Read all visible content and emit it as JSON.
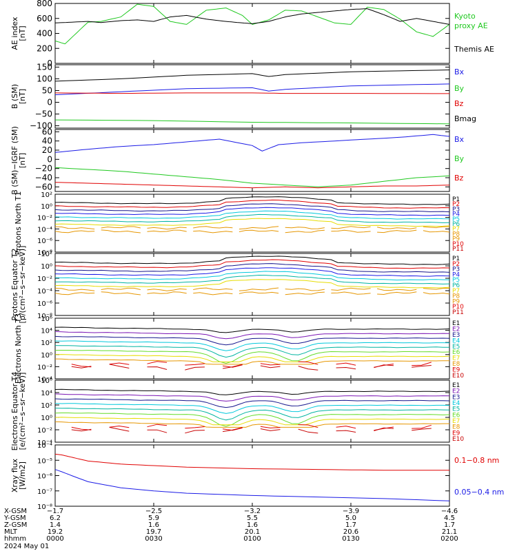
{
  "colors": {
    "black": "#000000",
    "red": "#e00000",
    "green": "#1ec81e",
    "blue": "#1a1ae6",
    "purple": "#7a14b4",
    "navy": "#14148c",
    "cyan": "#00c8dc",
    "teal": "#00b4a0",
    "lime": "#64dc28",
    "yellow": "#e6dc00",
    "orange": "#e69600",
    "darkred": "#c80000"
  },
  "chart_data": [
    {
      "type": "line",
      "ylabel": "AE index [nT]",
      "ylim": [
        0,
        800
      ],
      "yticks": [
        "0",
        "200",
        "400",
        "600",
        "800"
      ],
      "series": [
        {
          "name": "Kyoto proxy AE",
          "color": "green",
          "x": [
            0,
            3,
            10,
            14,
            20,
            25,
            30,
            35,
            40,
            46,
            52,
            57,
            60,
            65,
            70,
            75,
            80,
            85,
            90,
            95,
            100,
            105,
            110,
            115,
            120
          ],
          "values": [
            300,
            260,
            550,
            560,
            620,
            790,
            760,
            560,
            520,
            710,
            740,
            640,
            520,
            580,
            710,
            700,
            620,
            540,
            520,
            750,
            720,
            590,
            420,
            360,
            520
          ]
        },
        {
          "name": "Themis AE",
          "color": "black",
          "x": [
            0,
            5,
            10,
            14,
            20,
            25,
            30,
            35,
            40,
            46,
            52,
            57,
            60,
            65,
            70,
            75,
            80,
            85,
            90,
            95,
            100,
            105,
            110,
            115,
            120
          ],
          "values": [
            540,
            550,
            560,
            545,
            570,
            580,
            560,
            620,
            640,
            590,
            560,
            540,
            530,
            560,
            620,
            660,
            680,
            700,
            720,
            730,
            650,
            560,
            600,
            560,
            520
          ]
        }
      ]
    },
    {
      "type": "line",
      "ylabel": "B (SM) [nT]",
      "ylim": [
        -110,
        160
      ],
      "yticks": [
        "−100",
        "−50",
        "0",
        "50",
        "100",
        "150"
      ],
      "series": [
        {
          "name": "Bx",
          "color": "blue",
          "x": [
            0,
            20,
            40,
            60,
            65,
            70,
            90,
            120
          ],
          "values": [
            32,
            45,
            58,
            62,
            48,
            55,
            70,
            78
          ]
        },
        {
          "name": "By",
          "color": "green",
          "x": [
            0,
            30,
            60,
            90,
            120
          ],
          "values": [
            -75,
            -78,
            -85,
            -88,
            -92
          ]
        },
        {
          "name": "Bz",
          "color": "red",
          "x": [
            0,
            20,
            40,
            60,
            70,
            90,
            120
          ],
          "values": [
            40,
            38,
            40,
            40,
            38,
            38,
            37
          ]
        },
        {
          "name": "Bmag",
          "color": "black",
          "x": [
            0,
            20,
            40,
            60,
            65,
            70,
            90,
            120
          ],
          "values": [
            90,
            100,
            115,
            122,
            110,
            118,
            130,
            138
          ]
        }
      ]
    },
    {
      "type": "line",
      "ylabel": "B (SM)−IGRF (SM) [nT]",
      "ylim": [
        -70,
        65
      ],
      "yticks": [
        "−60",
        "−40",
        "−20",
        "0",
        "20",
        "40",
        "60"
      ],
      "series": [
        {
          "name": "Bx",
          "color": "blue",
          "x": [
            0,
            10,
            20,
            30,
            40,
            50,
            60,
            63,
            68,
            75,
            85,
            95,
            105,
            115,
            120
          ],
          "values": [
            15,
            22,
            28,
            32,
            38,
            44,
            30,
            18,
            32,
            36,
            40,
            44,
            48,
            54,
            50
          ]
        },
        {
          "name": "By",
          "color": "green",
          "x": [
            0,
            10,
            20,
            30,
            40,
            50,
            60,
            70,
            80,
            90,
            100,
            110,
            120
          ],
          "values": [
            -18,
            -22,
            -26,
            -32,
            -38,
            -44,
            -52,
            -56,
            -60,
            -56,
            -48,
            -40,
            -36
          ]
        },
        {
          "name": "Bz",
          "color": "red",
          "x": [
            0,
            10,
            20,
            30,
            40,
            50,
            60,
            70,
            80,
            90,
            100,
            110,
            120
          ],
          "values": [
            -50,
            -52,
            -54,
            -56,
            -58,
            -60,
            -62,
            -60,
            -62,
            -60,
            -58,
            -58,
            -56
          ]
        }
      ]
    },
    {
      "type": "line",
      "ylabel": "Protons North T1",
      "ylog": true,
      "yrange_exp": [
        -8,
        4
      ],
      "yticks": [
        "10²",
        "10⁰",
        "10⁻²",
        "10⁻⁴",
        "10⁻⁶",
        "10⁻⁸"
      ],
      "channels": [
        "P1",
        "P2",
        "P3",
        "P4",
        "P5",
        "P6",
        "P7",
        "P8",
        "P9",
        "P10",
        "P11"
      ],
      "channel_colors": [
        "black",
        "red",
        "navy",
        "blue",
        "cyan",
        "teal",
        "yellow",
        "orange",
        "orange",
        "red",
        "darkred"
      ]
    },
    {
      "type": "line",
      "ylabel": "Protons Equator T2 [p/(cm²−s−sr−keV)]",
      "ylog": true,
      "yrange_exp": [
        -8,
        4
      ],
      "yticks": [
        "10²",
        "10⁰",
        "10⁻²",
        "10⁻⁴",
        "10⁻⁶",
        "10⁻⁸"
      ],
      "channels": [
        "P1",
        "P2",
        "P3",
        "P4",
        "P5",
        "P6",
        "P7",
        "P8",
        "P9",
        "P10",
        "P11"
      ],
      "channel_colors": [
        "black",
        "red",
        "navy",
        "blue",
        "cyan",
        "teal",
        "yellow",
        "orange",
        "orange",
        "red",
        "darkred"
      ]
    },
    {
      "type": "line",
      "ylabel": "Electrons North T3",
      "ylog": true,
      "yrange_exp": [
        -4,
        6
      ],
      "yticks": [
        "10⁶",
        "10⁴",
        "10²",
        "10⁰",
        "10⁻²",
        "10⁻⁴"
      ],
      "channels": [
        "E1",
        "E2",
        "E3",
        "E4",
        "E5",
        "E6",
        "E7",
        "E8",
        "E9",
        "E10"
      ],
      "channel_colors": [
        "black",
        "purple",
        "navy",
        "cyan",
        "teal",
        "lime",
        "yellow",
        "orange",
        "red",
        "darkred"
      ]
    },
    {
      "type": "line",
      "ylabel": "Electrons Equator T4 [e/(cm²−s−sr−keV)]",
      "ylog": true,
      "yrange_exp": [
        -4,
        6
      ],
      "yticks": [
        "10⁶",
        "10⁴",
        "10²",
        "10⁰",
        "10⁻²",
        "10⁻⁴"
      ],
      "channels": [
        "E1",
        "E2",
        "E3",
        "E4",
        "E5",
        "E6",
        "E7",
        "E8",
        "E9",
        "E10"
      ],
      "channel_colors": [
        "black",
        "purple",
        "navy",
        "cyan",
        "teal",
        "lime",
        "yellow",
        "orange",
        "red",
        "darkred"
      ]
    },
    {
      "type": "line",
      "ylabel": "Xray flux [W/m2]",
      "ylog": true,
      "yrange_exp": [
        -8,
        -4
      ],
      "yticks": [
        "10⁻⁴",
        "10⁻⁵",
        "10⁻⁶",
        "10⁻⁷",
        "10⁻⁸"
      ],
      "series": [
        {
          "name": "0.1−0.8 nm",
          "color": "red",
          "x": [
            0,
            2,
            5,
            10,
            20,
            30,
            40,
            60,
            80,
            100,
            120
          ],
          "values_exp": [
            -4.6,
            -4.65,
            -4.8,
            -5.05,
            -5.25,
            -5.35,
            -5.45,
            -5.55,
            -5.6,
            -5.65,
            -5.65
          ]
        },
        {
          "name": "0.05−0.4 nm",
          "color": "blue",
          "x": [
            0,
            2,
            5,
            10,
            20,
            30,
            40,
            60,
            80,
            100,
            120
          ],
          "values_exp": [
            -5.6,
            -5.75,
            -6.0,
            -6.4,
            -6.8,
            -7.0,
            -7.15,
            -7.3,
            -7.4,
            -7.5,
            -7.65
          ]
        }
      ]
    }
  ],
  "panels": [
    {
      "legend": [
        {
          "text": "Kyoto",
          "color": "green"
        },
        {
          "text": "proxy AE",
          "color": "green"
        },
        {
          "text": "Themis AE",
          "color": "black"
        }
      ]
    },
    {
      "legend": [
        {
          "text": "Bx",
          "color": "blue"
        },
        {
          "text": "By",
          "color": "green"
        },
        {
          "text": "Bz",
          "color": "red"
        },
        {
          "text": "Bmag",
          "color": "black"
        }
      ]
    },
    {
      "legend": [
        {
          "text": "Bx",
          "color": "blue"
        },
        {
          "text": "By",
          "color": "green"
        },
        {
          "text": "Bz",
          "color": "red"
        }
      ]
    },
    {
      "legend": []
    },
    {
      "legend": []
    },
    {
      "legend": []
    },
    {
      "legend": []
    },
    {
      "legend": [
        {
          "text": "0.1−0.8 nm",
          "color": "red"
        },
        {
          "text": "0.05−0.4 nm",
          "color": "blue"
        }
      ]
    }
  ],
  "footer": {
    "rows": [
      {
        "label": "X-GSM",
        "values": [
          "−1.7",
          "−2.5",
          "−3.2",
          "−3.9",
          "−4.6"
        ]
      },
      {
        "label": "Y-GSM",
        "values": [
          "6.2",
          "5.9",
          "5.5",
          "5.0",
          "4.5"
        ]
      },
      {
        "label": "Z-GSM",
        "values": [
          "1.4",
          "1.6",
          "1.6",
          "1.7",
          "1.7"
        ]
      },
      {
        "label": "MLT",
        "values": [
          "19.2",
          "19.7",
          "20.1",
          "20.6",
          "21.1"
        ]
      },
      {
        "label": "hhmm",
        "values": [
          "0000",
          "0030",
          "0100",
          "0130",
          "0200"
        ]
      }
    ],
    "date": "2024 May 01"
  }
}
